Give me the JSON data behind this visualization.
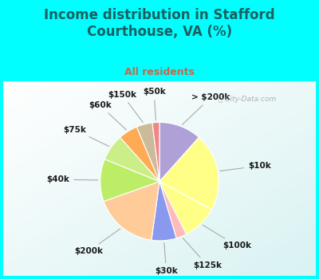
{
  "title": "Income distribution in Stafford\nCourthouse, VA (%)",
  "subtitle": "All residents",
  "bg_color": "#00FFFF",
  "title_color": "#1a6060",
  "subtitle_color": "#cc6644",
  "labels": [
    "> $200k",
    "$10k",
    "$100k",
    "$125k",
    "$30k",
    "$200k",
    "$40k",
    "$75k",
    "$60k",
    "$150k",
    "$50k"
  ],
  "values": [
    12.0,
    22.0,
    10.0,
    3.0,
    7.0,
    18.0,
    12.0,
    7.5,
    5.5,
    4.5,
    2.0
  ],
  "slice_colors": [
    "#b0a0d8",
    "#ffff88",
    "#ffff88",
    "#ffbbbb",
    "#8899ee",
    "#ffcc99",
    "#bbee66",
    "#ccee88",
    "#ffaa55",
    "#ccbb99",
    "#ee8888"
  ],
  "label_color": "#1a1a1a",
  "label_fontsize": 7.5,
  "watermark": "City-Data.com"
}
